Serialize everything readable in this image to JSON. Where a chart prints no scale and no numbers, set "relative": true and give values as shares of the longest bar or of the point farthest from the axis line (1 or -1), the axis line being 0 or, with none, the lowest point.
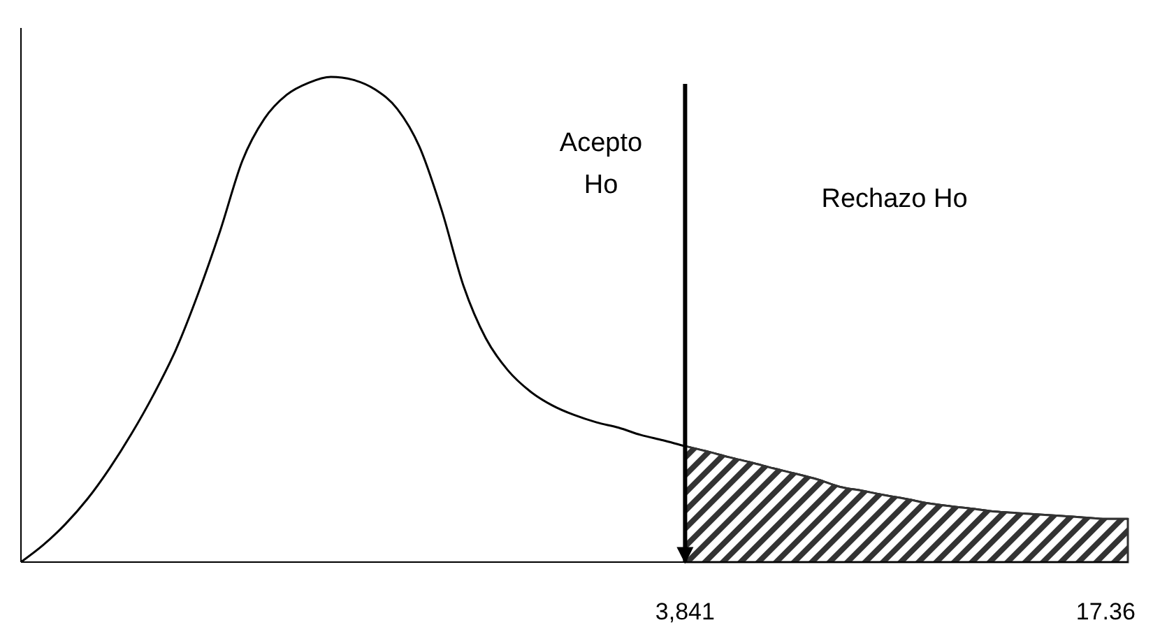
{
  "chart_data": {
    "type": "line",
    "relative": true,
    "marker": "none",
    "line_style": "solid",
    "categories": [
      null,
      null,
      null,
      null,
      null,
      null,
      null,
      null,
      null,
      null,
      null,
      null,
      null,
      null,
      null,
      null,
      null,
      null,
      null,
      null,
      null,
      null,
      null,
      null,
      null,
      null,
      null,
      null,
      null,
      null,
      "3,841",
      null,
      null,
      null,
      null,
      null,
      null,
      null,
      null,
      null,
      null,
      null,
      null,
      null,
      null,
      null,
      null,
      null,
      null,
      "17.36",
      null
    ],
    "series": [
      {
        "color": "#000000",
        "values": [
          0,
          0.035,
          0.078,
          0.13,
          0.193,
          0.265,
          0.346,
          0.438,
          0.553,
          0.683,
          0.827,
          0.914,
          0.963,
          0.988,
          1,
          0.994,
          0.974,
          0.934,
          0.856,
          0.726,
          0.568,
          0.461,
          0.395,
          0.352,
          0.323,
          0.303,
          0.288,
          0.277,
          0.262,
          0.251,
          0.239,
          0.228,
          0.216,
          0.205,
          0.193,
          0.182,
          0.17,
          0.155,
          0.147,
          0.138,
          0.13,
          0.121,
          0.115,
          0.11,
          0.104,
          0.101,
          0.098,
          0.095,
          0.092,
          0.089,
          0.089
        ]
      },
      {
        "type": "area",
        "color": "#333333",
        "values": [
          null,
          null,
          null,
          null,
          null,
          null,
          null,
          null,
          null,
          null,
          null,
          null,
          null,
          null,
          null,
          null,
          null,
          null,
          null,
          null,
          null,
          null,
          null,
          null,
          null,
          null,
          null,
          null,
          null,
          null,
          0.239,
          0.228,
          0.216,
          0.205,
          0.193,
          0.182,
          0.17,
          0.155,
          0.147,
          0.138,
          0.13,
          0.121,
          0.115,
          0.11,
          0.104,
          0.101,
          0.098,
          0.095,
          0.092,
          0.089,
          0.089
        ]
      }
    ],
    "ref_lines": [
      {
        "axis": "x",
        "value": "3,841",
        "color": "#000000",
        "line_style": "solid"
      }
    ],
    "annotations": [
      "Acepto\nHo",
      "Rechazo Ho"
    ]
  }
}
